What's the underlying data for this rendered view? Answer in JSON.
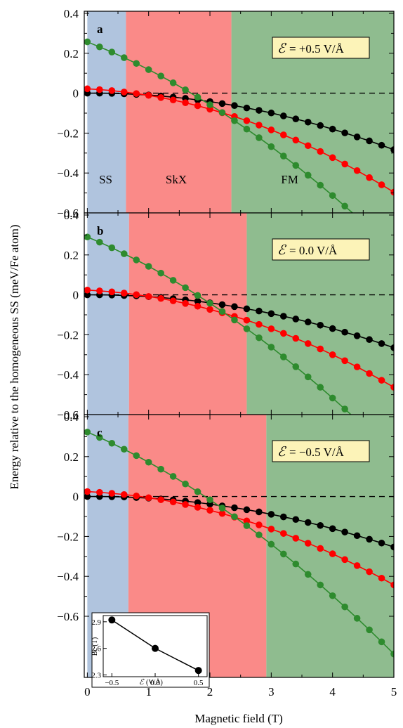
{
  "figure": {
    "ylabel": "Energy relative to the homogeneous SS (meV/Fe atom)",
    "xlabel": "Magnetic field (T)"
  },
  "chart_data": [
    {
      "type": "line",
      "panel": "a",
      "field_label": "= +0.5 V/Å",
      "phases": [
        {
          "name": "SS",
          "x_range": [
            0,
            0.63
          ],
          "color": "#b0c4de"
        },
        {
          "name": "SkX",
          "x_range": [
            0.63,
            2.35
          ],
          "color": "#fa8a88"
        },
        {
          "name": "FM",
          "x_range": [
            2.35,
            5
          ],
          "color": "#8fbc8f"
        }
      ],
      "x": [
        0,
        0.2,
        0.4,
        0.6,
        0.8,
        1.0,
        1.2,
        1.4,
        1.6,
        1.8,
        2.0,
        2.2,
        2.4,
        2.6,
        2.8,
        3.0,
        3.2,
        3.4,
        3.6,
        3.8,
        4.0,
        4.2,
        4.4,
        4.6,
        4.8,
        5.0
      ],
      "series": [
        {
          "color": "#000000",
          "values": [
            0,
            0,
            -0.001,
            -0.003,
            -0.006,
            -0.009,
            -0.014,
            -0.02,
            -0.026,
            -0.034,
            -0.042,
            -0.052,
            -0.062,
            -0.074,
            -0.086,
            -0.099,
            -0.114,
            -0.129,
            -0.145,
            -0.162,
            -0.18,
            -0.199,
            -0.219,
            -0.239,
            -0.261,
            -0.283
          ]
        },
        {
          "color": "#ff0000",
          "values": [
            0.022,
            0.018,
            0.013,
            0.006,
            -0.002,
            -0.011,
            -0.022,
            -0.034,
            -0.048,
            -0.063,
            -0.08,
            -0.098,
            -0.117,
            -0.138,
            -0.16,
            -0.184,
            -0.209,
            -0.235,
            -0.263,
            -0.292,
            -0.323,
            -0.355,
            -0.388,
            -0.423,
            -0.459,
            -0.496
          ]
        },
        {
          "color": "#2e8b2e",
          "values": [
            0.257,
            0.232,
            0.206,
            0.178,
            0.149,
            0.118,
            0.086,
            0.052,
            0.017,
            -0.02,
            -0.058,
            -0.097,
            -0.138,
            -0.18,
            -0.223,
            -0.268,
            -0.315,
            -0.362,
            -0.411,
            -0.461,
            -0.513,
            -0.566,
            -0.62,
            -0.676,
            -0.733,
            -0.791
          ]
        }
      ],
      "ylim": [
        -0.7,
        0.4
      ],
      "xlim": [
        -0.05,
        5
      ],
      "yticks": [
        "0.4",
        "0.2",
        "0",
        "−0.2",
        "−0.4",
        "−0.6"
      ]
    },
    {
      "type": "line",
      "panel": "b",
      "field_label": "=   0.0 V/Å",
      "phases": [
        {
          "name": "",
          "x_range": [
            0,
            0.68
          ],
          "color": "#b0c4de"
        },
        {
          "name": "",
          "x_range": [
            0.68,
            2.6
          ],
          "color": "#fa8a88"
        },
        {
          "name": "",
          "x_range": [
            2.6,
            5
          ],
          "color": "#8fbc8f"
        }
      ],
      "x": [
        0,
        0.2,
        0.4,
        0.6,
        0.8,
        1.0,
        1.2,
        1.4,
        1.6,
        1.8,
        2.0,
        2.2,
        2.4,
        2.6,
        2.8,
        3.0,
        3.2,
        3.4,
        3.6,
        3.8,
        4.0,
        4.2,
        4.4,
        4.6,
        4.8,
        5.0
      ],
      "series": [
        {
          "color": "#000000",
          "values": [
            0,
            0,
            -0.001,
            -0.003,
            -0.005,
            -0.009,
            -0.013,
            -0.019,
            -0.025,
            -0.032,
            -0.04,
            -0.049,
            -0.059,
            -0.07,
            -0.081,
            -0.094,
            -0.107,
            -0.121,
            -0.136,
            -0.152,
            -0.169,
            -0.187,
            -0.205,
            -0.224,
            -0.244,
            -0.265
          ]
        },
        {
          "color": "#ff0000",
          "values": [
            0.024,
            0.02,
            0.015,
            0.009,
            0.001,
            -0.008,
            -0.018,
            -0.03,
            -0.043,
            -0.057,
            -0.073,
            -0.09,
            -0.108,
            -0.127,
            -0.148,
            -0.17,
            -0.193,
            -0.218,
            -0.244,
            -0.271,
            -0.3,
            -0.33,
            -0.361,
            -0.394,
            -0.428,
            -0.463
          ]
        },
        {
          "color": "#2e8b2e",
          "values": [
            0.29,
            0.264,
            0.236,
            0.206,
            0.175,
            0.143,
            0.109,
            0.073,
            0.036,
            -0.003,
            -0.042,
            -0.083,
            -0.126,
            -0.17,
            -0.215,
            -0.262,
            -0.311,
            -0.36,
            -0.411,
            -0.463,
            -0.517,
            -0.572,
            -0.628,
            -0.686,
            -0.745,
            -0.805
          ]
        }
      ],
      "ylim": [
        -0.7,
        0.4
      ],
      "xlim": [
        -0.05,
        5
      ],
      "yticks": [
        "0.4",
        "0.2",
        "0",
        "−0.2",
        "−0.4",
        "−0.6"
      ]
    },
    {
      "type": "line",
      "panel": "c",
      "field_label": "= −0.5 V/Å",
      "phases": [
        {
          "name": "",
          "x_range": [
            0,
            0.67
          ],
          "color": "#b0c4de"
        },
        {
          "name": "",
          "x_range": [
            0.67,
            2.92
          ],
          "color": "#fa8a88"
        },
        {
          "name": "",
          "x_range": [
            2.92,
            5
          ],
          "color": "#8fbc8f"
        }
      ],
      "x": [
        0,
        0.2,
        0.4,
        0.6,
        0.8,
        1.0,
        1.2,
        1.4,
        1.6,
        1.8,
        2.0,
        2.2,
        2.4,
        2.6,
        2.8,
        3.0,
        3.2,
        3.4,
        3.6,
        3.8,
        4.0,
        4.2,
        4.4,
        4.6,
        4.8,
        5.0
      ],
      "series": [
        {
          "color": "#000000",
          "values": [
            0,
            0,
            -0.001,
            -0.002,
            -0.005,
            -0.008,
            -0.012,
            -0.017,
            -0.023,
            -0.03,
            -0.038,
            -0.047,
            -0.056,
            -0.066,
            -0.077,
            -0.089,
            -0.102,
            -0.115,
            -0.13,
            -0.145,
            -0.161,
            -0.178,
            -0.196,
            -0.214,
            -0.233,
            -0.253
          ]
        },
        {
          "color": "#ff0000",
          "values": [
            0.025,
            0.021,
            0.016,
            0.01,
            0.003,
            -0.006,
            -0.016,
            -0.027,
            -0.04,
            -0.054,
            -0.069,
            -0.085,
            -0.103,
            -0.122,
            -0.142,
            -0.163,
            -0.185,
            -0.209,
            -0.234,
            -0.26,
            -0.287,
            -0.316,
            -0.346,
            -0.377,
            -0.409,
            -0.443
          ]
        },
        {
          "color": "#2e8b2e",
          "values": [
            0.323,
            0.296,
            0.267,
            0.237,
            0.205,
            0.172,
            0.137,
            0.101,
            0.063,
            0.024,
            -0.016,
            -0.058,
            -0.101,
            -0.146,
            -0.192,
            -0.239,
            -0.288,
            -0.338,
            -0.39,
            -0.443,
            -0.497,
            -0.553,
            -0.61,
            -0.668,
            -0.728,
            -0.789
          ]
        }
      ],
      "ylim": [
        -0.7,
        0.4
      ],
      "xlim": [
        -0.05,
        5
      ],
      "yticks": [
        "0.4",
        "0.2",
        "0",
        "−0.2",
        "−0.4",
        "−0.6"
      ]
    },
    {
      "type": "line",
      "panel": "inset",
      "ylabel": "B",
      "ylabel_sub": "c",
      "ylabel_unit": "(T)",
      "xlabel_unit": "(V/Å)",
      "x": [
        -0.5,
        0.0,
        0.5
      ],
      "y": [
        2.92,
        2.6,
        2.35
      ],
      "xticks": [
        "−0.5",
        "0.0",
        "0.5"
      ],
      "yticks": [
        "2.9",
        "2.6",
        "2.3"
      ],
      "xlim": [
        -0.6,
        0.6
      ],
      "ylim": [
        2.28,
        2.97
      ]
    }
  ],
  "xticks": [
    "0",
    "1",
    "2",
    "3",
    "4",
    "5"
  ]
}
